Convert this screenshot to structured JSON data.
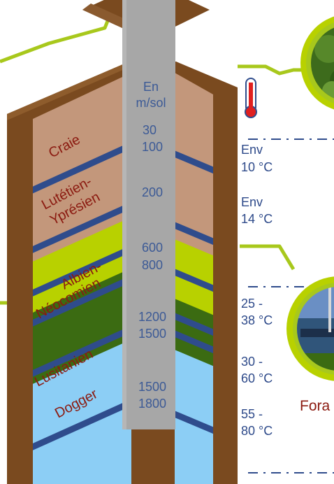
{
  "header": {
    "unit_line1": "En",
    "unit_line2": "m/sol"
  },
  "layers": [
    {
      "id": "craie",
      "label": "Craie",
      "depth_top": "30",
      "depth_bottom": "100"
    },
    {
      "id": "lutetien",
      "label_line1": "Lutétien-",
      "label_line2": "Yprésien",
      "depth": "200"
    },
    {
      "id": "albien",
      "label_line1": "Albien-",
      "label_line2": "Néocomien",
      "depth_top": "600",
      "depth_bottom": "800"
    },
    {
      "id": "lusitanien",
      "label": "Lusitanien",
      "depth_top": "1200",
      "depth_bottom": "1500"
    },
    {
      "id": "dogger",
      "label": "Dogger",
      "depth_top": "1500",
      "depth_bottom": "1800"
    }
  ],
  "temperatures": [
    {
      "line1": "Env",
      "line2": "10 °C"
    },
    {
      "line1": "Env",
      "line2": "14 °C"
    },
    {
      "line1": "25 -",
      "line2": "38 °C"
    },
    {
      "line1": "30 -",
      "line2": "60 °C"
    },
    {
      "line1": "55 -",
      "line2": "80 °C"
    }
  ],
  "caption": "Fora",
  "colors": {
    "brown_frame": "#7a4a1f",
    "craie": "#c3977b",
    "albien": "#b8d100",
    "lusitanien": "#3b6b12",
    "dogger": "#8ccef5",
    "band": "#2f4c8c",
    "pipe": "#a7a7a7",
    "connector": "#a8c81c",
    "text_dark_red": "#8b1a10",
    "text_blue": "#3c5a96"
  },
  "icons": [
    "thermometer-icon",
    "photo-badge-top",
    "photo-badge-drilling-rig"
  ]
}
